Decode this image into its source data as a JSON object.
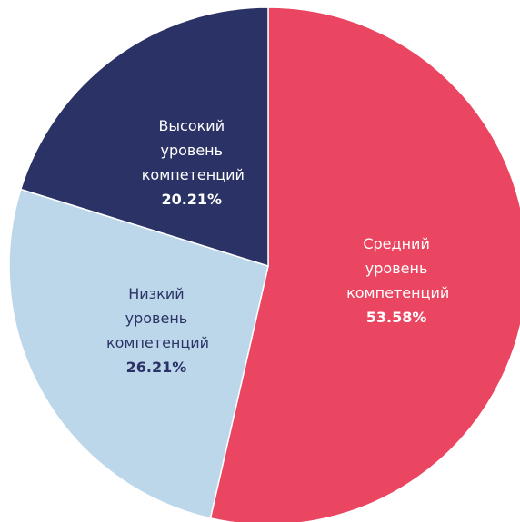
{
  "chart_data": {
    "type": "pie",
    "categories": [
      "Средний уровень компетенций",
      "Низкий уровень компетенций",
      "Высокий уровень компетенций"
    ],
    "values": [
      53.58,
      26.21,
      20.21
    ],
    "value_labels": [
      "53.58%",
      "26.21%",
      "20.21%"
    ],
    "colors": [
      "#ea4661",
      "#bdd7ea",
      "#2b3366"
    ],
    "label_colors": [
      "#ffffff",
      "#2b3366",
      "#ffffff"
    ]
  }
}
